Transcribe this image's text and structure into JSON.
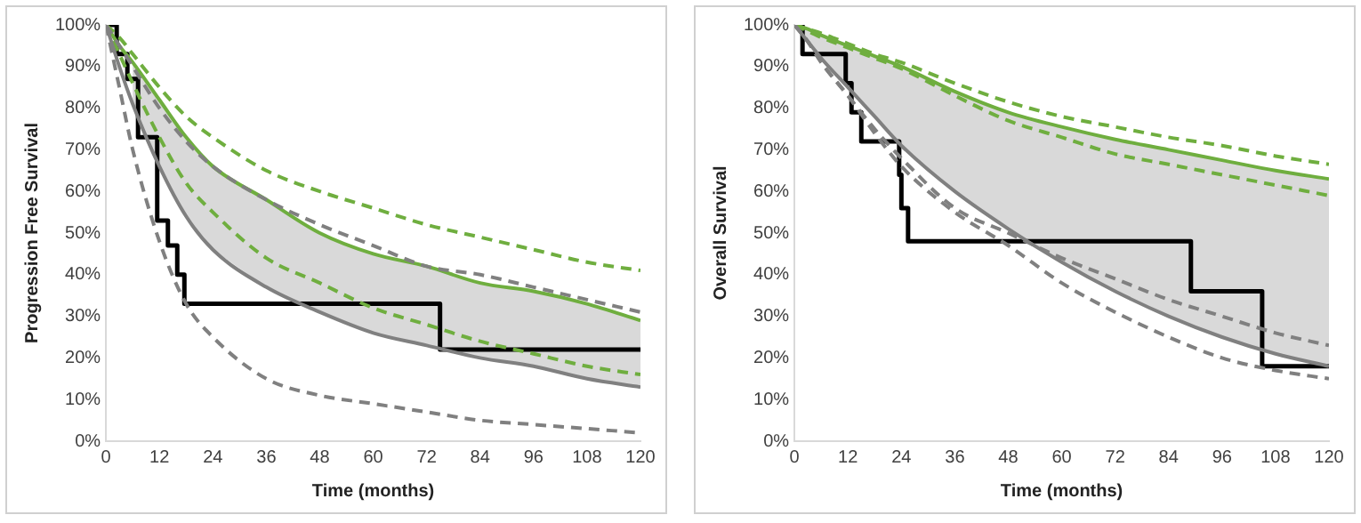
{
  "chart_data": [
    {
      "type": "line",
      "ylabel": "Progression Free Survival",
      "xlabel": "Time (months)",
      "legend": false,
      "grid": false,
      "marker": "none",
      "xlim": [
        0,
        120
      ],
      "xticks": [
        0,
        12,
        24,
        36,
        48,
        60,
        72,
        84,
        96,
        108,
        120
      ],
      "ylim": [
        0,
        100
      ],
      "yticks": [
        {
          "value": 0,
          "label": "0%"
        },
        {
          "value": 10,
          "label": "10%"
        },
        {
          "value": 20,
          "label": "20%"
        },
        {
          "value": 30,
          "label": "30%"
        },
        {
          "value": 40,
          "label": "40%"
        },
        {
          "value": 50,
          "label": "50%"
        },
        {
          "value": 60,
          "label": "60%"
        },
        {
          "value": 70,
          "label": "70%"
        },
        {
          "value": 80,
          "label": "80%"
        },
        {
          "value": 90,
          "label": "90%"
        },
        {
          "value": 100,
          "label": "100%"
        }
      ],
      "series": [
        {
          "color": "#808080",
          "line_style": "dashed",
          "x": [
            0,
            3,
            6,
            12,
            18,
            24,
            36,
            48,
            60,
            72,
            84,
            96,
            108,
            120
          ],
          "values": [
            100,
            95,
            90,
            80,
            72,
            66,
            58,
            52,
            47,
            42,
            40,
            37,
            34,
            31
          ]
        },
        {
          "color": "#808080",
          "line_style": "dashed",
          "x": [
            0,
            3,
            6,
            12,
            18,
            24,
            36,
            48,
            60,
            72,
            84,
            96,
            108,
            120
          ],
          "values": [
            100,
            85,
            70,
            48,
            33,
            25,
            15,
            11,
            9,
            7,
            5,
            4,
            3,
            2
          ]
        },
        {
          "color": "#808080",
          "line_style": "solid",
          "x": [
            0,
            3,
            6,
            12,
            18,
            24,
            36,
            48,
            60,
            72,
            84,
            96,
            108,
            120
          ],
          "values": [
            100,
            90,
            81,
            66,
            54,
            46,
            37,
            31,
            26,
            23,
            20,
            18,
            15,
            13
          ]
        },
        {
          "color": "#6fae3f",
          "line_style": "dashed",
          "x": [
            0,
            3,
            6,
            12,
            18,
            24,
            36,
            48,
            60,
            72,
            84,
            96,
            108,
            120
          ],
          "values": [
            100,
            97,
            93,
            85,
            78,
            73,
            65,
            60,
            56,
            52,
            49,
            46,
            43,
            41
          ]
        },
        {
          "color": "#6fae3f",
          "line_style": "dashed",
          "x": [
            0,
            3,
            6,
            12,
            18,
            24,
            36,
            48,
            60,
            72,
            84,
            96,
            108,
            120
          ],
          "values": [
            100,
            93,
            86,
            73,
            62,
            55,
            44,
            38,
            32,
            28,
            24,
            21,
            18,
            16
          ]
        },
        {
          "color": "#6fae3f",
          "line_style": "solid",
          "x": [
            0,
            3,
            6,
            12,
            18,
            24,
            36,
            48,
            60,
            72,
            84,
            96,
            108,
            120
          ],
          "values": [
            100,
            95,
            91,
            82,
            73,
            66,
            58,
            50,
            45,
            42,
            38,
            36,
            33,
            29
          ],
          "lower": [
            null,
            null,
            81,
            66,
            54,
            46,
            37,
            31,
            26,
            23,
            20,
            18,
            15,
            13
          ],
          "upper": [
            null,
            null,
            91,
            82,
            73,
            66,
            58,
            50,
            45,
            42,
            38,
            36,
            33,
            29
          ]
        },
        {
          "type": "step",
          "color": "#000000",
          "line_style": "solid",
          "x": [
            0,
            2.4,
            4.8,
            7.2,
            11.5,
            13.9,
            16,
            17.6,
            75,
            120
          ],
          "values": [
            100,
            93,
            87,
            73,
            53,
            47,
            40,
            33,
            22,
            22
          ]
        }
      ]
    },
    {
      "type": "line",
      "ylabel": "Overall Survival",
      "xlabel": "Time (months)",
      "legend": false,
      "grid": false,
      "marker": "none",
      "xlim": [
        0,
        120
      ],
      "xticks": [
        0,
        12,
        24,
        36,
        48,
        60,
        72,
        84,
        96,
        108,
        120
      ],
      "ylim": [
        0,
        100
      ],
      "yticks": [
        {
          "value": 0,
          "label": "0%"
        },
        {
          "value": 10,
          "label": "10%"
        },
        {
          "value": 20,
          "label": "20%"
        },
        {
          "value": 30,
          "label": "30%"
        },
        {
          "value": 40,
          "label": "40%"
        },
        {
          "value": 50,
          "label": "50%"
        },
        {
          "value": 60,
          "label": "60%"
        },
        {
          "value": 70,
          "label": "70%"
        },
        {
          "value": 80,
          "label": "80%"
        },
        {
          "value": 90,
          "label": "90%"
        },
        {
          "value": 100,
          "label": "100%"
        }
      ],
      "series": [
        {
          "color": "#808080",
          "line_style": "dashed",
          "x": [
            0,
            3,
            6,
            12,
            18,
            24,
            36,
            48,
            60,
            72,
            84,
            96,
            108,
            120
          ],
          "values": [
            100,
            96,
            91,
            83,
            75,
            68,
            56,
            50,
            44,
            39,
            34,
            30,
            26,
            23
          ]
        },
        {
          "color": "#808080",
          "line_style": "dashed",
          "x": [
            0,
            3,
            6,
            12,
            18,
            24,
            36,
            48,
            60,
            72,
            84,
            96,
            108,
            120
          ],
          "values": [
            100,
            96,
            91,
            83,
            74,
            66,
            55,
            47,
            38,
            31,
            25,
            20,
            17,
            15
          ]
        },
        {
          "color": "#808080",
          "line_style": "solid",
          "x": [
            0,
            3,
            6,
            12,
            18,
            24,
            36,
            48,
            60,
            72,
            84,
            96,
            108,
            120
          ],
          "values": [
            100,
            96,
            92,
            85,
            78,
            71,
            60,
            51,
            43,
            36,
            30,
            25,
            21,
            18
          ]
        },
        {
          "color": "#6fae3f",
          "line_style": "dashed",
          "x": [
            0,
            3,
            6,
            12,
            18,
            24,
            36,
            48,
            60,
            72,
            84,
            96,
            108,
            120
          ],
          "values": [
            100,
            99,
            98,
            95.5,
            93,
            91,
            86,
            81.5,
            78,
            75.5,
            73,
            71,
            68.5,
            66.5
          ]
        },
        {
          "color": "#6fae3f",
          "line_style": "dashed",
          "x": [
            0,
            3,
            6,
            12,
            18,
            24,
            36,
            48,
            60,
            72,
            84,
            96,
            108,
            120
          ],
          "values": [
            100,
            98.5,
            97,
            94.5,
            92,
            89.5,
            83,
            77,
            73,
            69,
            66.5,
            64,
            61.5,
            59
          ]
        },
        {
          "color": "#6fae3f",
          "line_style": "solid",
          "x": [
            0,
            3,
            6,
            12,
            18,
            24,
            36,
            48,
            60,
            72,
            84,
            96,
            108,
            120
          ],
          "values": [
            100,
            99,
            97.5,
            95,
            92.5,
            90,
            84,
            79,
            75.5,
            72.5,
            70,
            67.5,
            65,
            63
          ],
          "lower": [
            100,
            96,
            92,
            85,
            78,
            71,
            60,
            51,
            43,
            36,
            30,
            25,
            21,
            18
          ],
          "upper": [
            100,
            99,
            97.5,
            95,
            92.5,
            90,
            84,
            79,
            75.5,
            72.5,
            70,
            67.5,
            65,
            63
          ]
        },
        {
          "type": "step",
          "color": "#000000",
          "line_style": "solid",
          "x": [
            0,
            1.8,
            11.5,
            12.8,
            15,
            23.5,
            24,
            25.5,
            89,
            105,
            120
          ],
          "values": [
            100,
            93,
            86,
            79,
            72,
            64,
            56,
            48,
            36,
            18,
            18
          ]
        }
      ]
    }
  ]
}
